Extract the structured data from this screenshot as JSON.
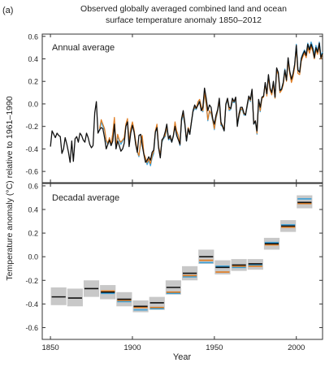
{
  "panel_label": "(a)",
  "title_line1": "Observed globally averaged combined land and ocean",
  "title_line2": "surface temperature anomaly 1850–2012",
  "ylabel": "Temperature anomaly (°C) relative to 1961–1990",
  "xlabel": "Year",
  "chart_data": [
    {
      "type": "line",
      "title": "Annual average",
      "ylim": [
        -0.7,
        0.62
      ],
      "xlim": [
        1845,
        2016
      ],
      "yticks": [
        -0.6,
        -0.4,
        -0.2,
        0.0,
        0.2,
        0.4,
        0.6
      ],
      "ytick_labels": [
        "-0.6",
        "-0.4",
        "-0.2",
        "0.0",
        "0.2",
        "0.4",
        "0.6"
      ],
      "grid": false,
      "legend": "none",
      "series": [
        {
          "color": "#111111",
          "start_year": 1850,
          "values": [
            -0.38,
            -0.24,
            -0.27,
            -0.3,
            -0.26,
            -0.28,
            -0.29,
            -0.44,
            -0.4,
            -0.3,
            -0.36,
            -0.43,
            -0.52,
            -0.33,
            -0.51,
            -0.31,
            -0.29,
            -0.34,
            -0.26,
            -0.28,
            -0.32,
            -0.34,
            -0.26,
            -0.3,
            -0.36,
            -0.39,
            -0.37,
            -0.08,
            0.02,
            -0.26,
            -0.23,
            -0.21,
            -0.22,
            -0.3,
            -0.4,
            -0.36,
            -0.32,
            -0.37,
            -0.33,
            -0.18,
            -0.4,
            -0.33,
            -0.37,
            -0.42,
            -0.4,
            -0.35,
            -0.2,
            -0.16,
            -0.38,
            -0.26,
            -0.19,
            -0.25,
            -0.36,
            -0.43,
            -0.28,
            -0.27,
            -0.37,
            -0.45,
            -0.52,
            -0.5,
            -0.47,
            -0.5,
            -0.43,
            -0.41,
            -0.25,
            -0.21,
            -0.39,
            -0.48,
            -0.32,
            -0.3,
            -0.25,
            -0.18,
            -0.31,
            -0.28,
            -0.34,
            -0.28,
            -0.2,
            -0.28,
            -0.32,
            -0.36,
            -0.13,
            -0.06,
            -0.17,
            -0.33,
            -0.22,
            -0.27,
            -0.16,
            -0.06,
            -0.01,
            -0.04,
            -0.01,
            0.02,
            -0.06,
            -0.03,
            0.14,
            0.05,
            -0.06,
            -0.01,
            -0.03,
            -0.13,
            -0.18,
            -0.1,
            -0.05,
            0.05,
            -0.16,
            -0.2,
            -0.24,
            0.0,
            0.05,
            -0.03,
            -0.04,
            0.05,
            0.02,
            0.06,
            -0.2,
            -0.09,
            -0.03,
            -0.03,
            -0.08,
            -0.1,
            -0.01,
            0.07,
            0.04,
            0.13,
            -0.18,
            -0.15,
            -0.24,
            0.04,
            -0.03,
            0.06,
            0.07,
            0.19,
            0.09,
            0.26,
            0.14,
            0.1,
            0.2,
            0.06,
            0.32,
            0.28,
            0.12,
            0.13,
            0.19,
            0.3,
            0.21,
            0.41,
            0.29,
            0.22,
            0.27,
            0.35,
            0.52,
            0.3,
            0.28,
            0.4,
            0.44,
            0.47,
            0.43,
            0.53,
            0.48,
            0.53,
            0.49,
            0.41,
            0.5,
            0.46,
            0.54,
            0.41,
            0.45
          ]
        },
        {
          "color": "#e07b1f",
          "start_year": 1880,
          "values": [
            -0.22,
            -0.14,
            -0.18,
            -0.22,
            -0.32,
            -0.35,
            -0.3,
            -0.36,
            -0.26,
            -0.12,
            -0.38,
            -0.27,
            -0.32,
            -0.34,
            -0.32,
            -0.3,
            -0.18,
            -0.13,
            -0.34,
            -0.22,
            -0.16,
            -0.23,
            -0.33,
            -0.42,
            -0.46,
            -0.33,
            -0.28,
            -0.44,
            -0.48,
            -0.52,
            -0.49,
            -0.53,
            -0.46,
            -0.42,
            -0.24,
            -0.18,
            -0.38,
            -0.45,
            -0.33,
            -0.3,
            -0.28,
            -0.2,
            -0.31,
            -0.3,
            -0.33,
            -0.28,
            -0.16,
            -0.24,
            -0.28,
            -0.36,
            -0.13,
            -0.09,
            -0.18,
            -0.32,
            -0.21,
            -0.26,
            -0.16,
            -0.06,
            -0.03,
            -0.04,
            0.02,
            0.04,
            -0.02,
            -0.06,
            0.1,
            0.0,
            -0.14,
            -0.06,
            -0.08,
            -0.14,
            -0.22,
            -0.12,
            -0.06,
            0.03,
            -0.18,
            -0.19,
            -0.23,
            0.0,
            0.04,
            -0.05,
            -0.04,
            0.03,
            0.02,
            0.05,
            -0.18,
            -0.11,
            -0.05,
            -0.04,
            -0.09,
            -0.09,
            -0.02,
            0.06,
            0.03,
            0.12,
            -0.17,
            -0.15,
            -0.26,
            0.03,
            -0.06,
            0.05,
            0.06,
            0.18,
            0.07,
            0.24,
            0.12,
            0.08,
            0.18,
            0.05,
            0.3,
            0.26,
            0.1,
            0.12,
            0.17,
            0.29,
            0.2,
            0.38,
            0.27,
            0.19,
            0.24,
            0.33,
            0.5,
            0.27,
            0.26,
            0.38,
            0.42,
            0.45,
            0.41,
            0.5,
            0.45,
            0.51,
            0.47,
            0.4,
            0.48,
            0.44,
            0.51,
            0.4,
            0.44
          ]
        },
        {
          "color": "#3a9fd6",
          "start_year": 1880,
          "values": [
            -0.24,
            -0.16,
            -0.2,
            -0.23,
            -0.33,
            -0.36,
            -0.31,
            -0.37,
            -0.27,
            -0.14,
            -0.39,
            -0.29,
            -0.33,
            -0.36,
            -0.33,
            -0.31,
            -0.2,
            -0.15,
            -0.35,
            -0.24,
            -0.18,
            -0.25,
            -0.34,
            -0.43,
            -0.47,
            -0.35,
            -0.3,
            -0.45,
            -0.49,
            -0.54,
            -0.5,
            -0.55,
            -0.48,
            -0.44,
            -0.26,
            -0.2,
            -0.39,
            -0.46,
            -0.34,
            -0.31,
            -0.29,
            -0.22,
            -0.32,
            -0.31,
            -0.34,
            -0.29,
            -0.18,
            -0.25,
            -0.29,
            -0.37,
            -0.15,
            -0.1,
            -0.19,
            -0.33,
            -0.22,
            -0.27,
            -0.17,
            -0.07,
            -0.04,
            -0.05,
            0.01,
            0.03,
            -0.03,
            -0.07,
            0.09,
            -0.01,
            -0.15,
            -0.07,
            -0.09,
            -0.15,
            -0.23,
            -0.13,
            -0.07,
            0.02,
            -0.19,
            -0.2,
            -0.24,
            -0.01,
            0.03,
            -0.06,
            -0.05,
            0.02,
            0.01,
            0.04,
            -0.19,
            -0.12,
            -0.06,
            -0.05,
            -0.1,
            -0.1,
            -0.03,
            0.05,
            0.02,
            0.11,
            -0.18,
            -0.16,
            -0.27,
            0.02,
            -0.07,
            0.05,
            0.06,
            0.18,
            0.08,
            0.25,
            0.13,
            0.09,
            0.19,
            0.06,
            0.31,
            0.28,
            0.11,
            0.14,
            0.19,
            0.31,
            0.22,
            0.4,
            0.29,
            0.21,
            0.26,
            0.35,
            0.53,
            0.3,
            0.29,
            0.41,
            0.45,
            0.48,
            0.44,
            0.54,
            0.49,
            0.55,
            0.51,
            0.44,
            0.52,
            0.47,
            0.55,
            0.43,
            0.46
          ]
        }
      ]
    },
    {
      "type": "bar",
      "title": "Decadal average",
      "ylim": [
        -0.7,
        0.62
      ],
      "xlim": [
        1845,
        2016
      ],
      "yticks": [
        -0.6,
        -0.4,
        -0.2,
        0.0,
        0.2,
        0.4,
        0.6
      ],
      "ytick_labels": [
        "-0.6",
        "-0.4",
        "-0.2",
        "0.0",
        "0.2",
        "0.4",
        "0.6"
      ],
      "xticks": [
        1850,
        1900,
        1950,
        2000
      ],
      "xtick_labels": [
        "1850",
        "1900",
        "1950",
        "2000"
      ],
      "grid": false,
      "legend": "none",
      "decades": [
        {
          "start": 1850,
          "black": -0.34,
          "orange": null,
          "blue": null,
          "low": -0.41,
          "high": -0.26
        },
        {
          "start": 1860,
          "black": -0.35,
          "orange": null,
          "blue": null,
          "low": -0.42,
          "high": -0.27
        },
        {
          "start": 1870,
          "black": -0.27,
          "orange": null,
          "blue": null,
          "low": -0.34,
          "high": -0.2
        },
        {
          "start": 1880,
          "black": -0.3,
          "orange": -0.29,
          "blue": -0.31,
          "low": -0.36,
          "high": -0.24
        },
        {
          "start": 1890,
          "black": -0.36,
          "orange": -0.37,
          "blue": -0.38,
          "low": -0.42,
          "high": -0.3
        },
        {
          "start": 1900,
          "black": -0.42,
          "orange": -0.43,
          "blue": -0.45,
          "low": -0.47,
          "high": -0.37
        },
        {
          "start": 1910,
          "black": -0.39,
          "orange": -0.43,
          "blue": -0.44,
          "low": -0.45,
          "high": -0.34
        },
        {
          "start": 1920,
          "black": -0.26,
          "orange": -0.3,
          "blue": -0.31,
          "low": -0.32,
          "high": -0.2
        },
        {
          "start": 1930,
          "black": -0.14,
          "orange": -0.16,
          "blue": -0.17,
          "low": -0.2,
          "high": -0.08
        },
        {
          "start": 1940,
          "black": 0.0,
          "orange": -0.03,
          "blue": -0.05,
          "low": -0.06,
          "high": 0.06
        },
        {
          "start": 1950,
          "black": -0.09,
          "orange": -0.13,
          "blue": -0.08,
          "low": -0.15,
          "high": -0.03
        },
        {
          "start": 1960,
          "black": -0.07,
          "orange": -0.08,
          "blue": -0.09,
          "low": -0.12,
          "high": -0.02
        },
        {
          "start": 1970,
          "black": -0.06,
          "orange": -0.08,
          "blue": -0.07,
          "low": -0.11,
          "high": -0.02
        },
        {
          "start": 1980,
          "black": 0.11,
          "orange": 0.1,
          "blue": 0.12,
          "low": 0.06,
          "high": 0.16
        },
        {
          "start": 1990,
          "black": 0.26,
          "orange": 0.25,
          "blue": 0.27,
          "low": 0.21,
          "high": 0.31
        },
        {
          "start": 2000,
          "black": 0.46,
          "orange": 0.45,
          "blue": 0.49,
          "low": 0.41,
          "high": 0.52
        }
      ]
    }
  ]
}
